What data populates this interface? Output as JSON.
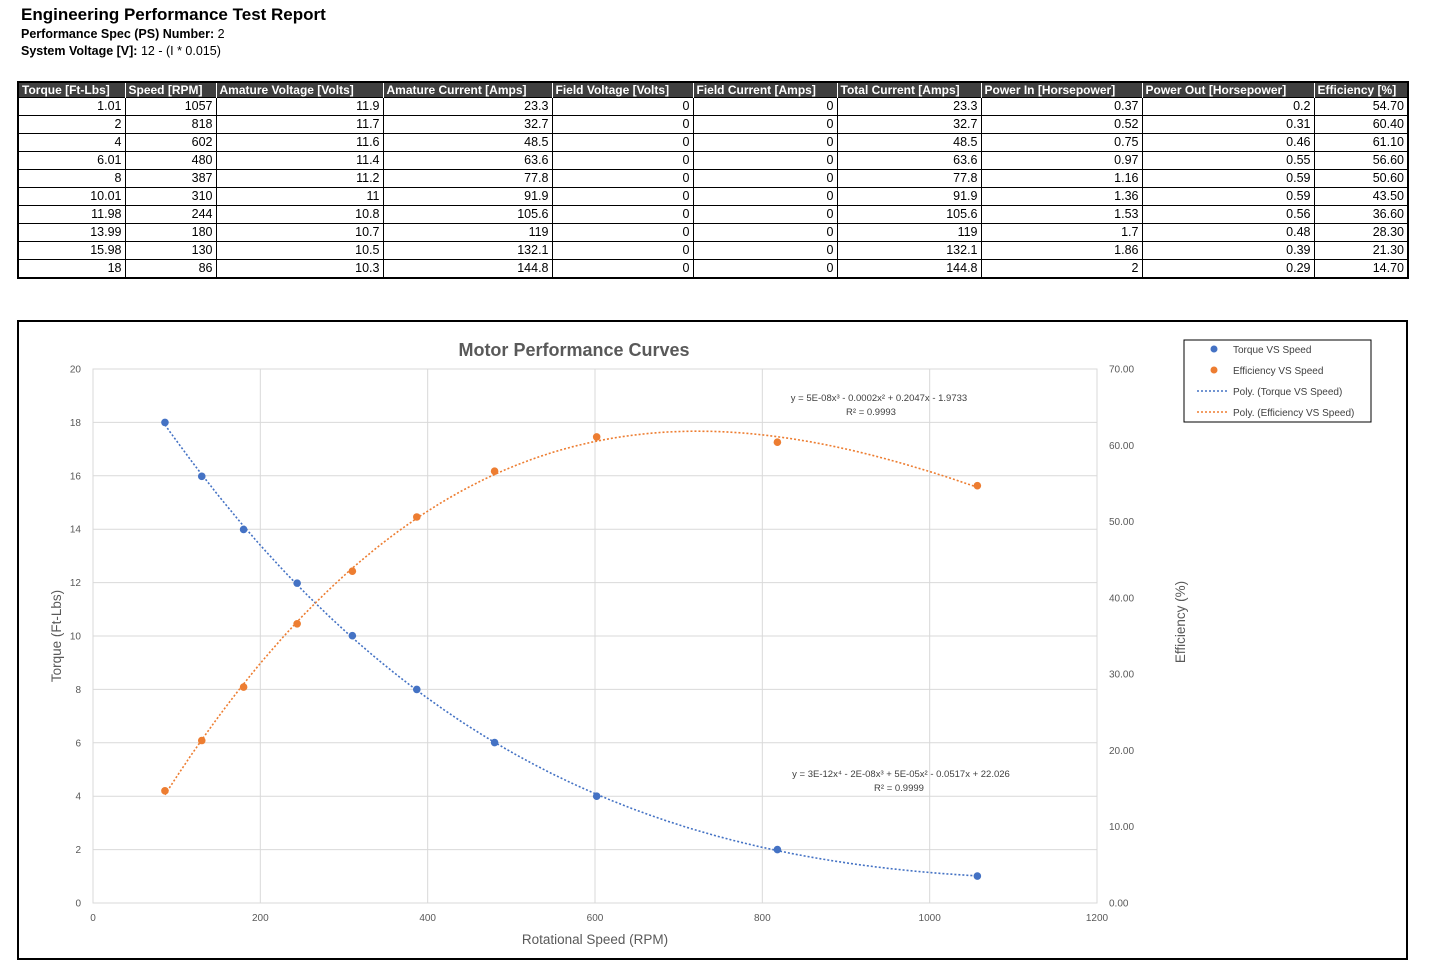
{
  "report": {
    "title": "Engineering Performance Test Report",
    "spec_label": "Performance Spec (PS) Number:",
    "spec_value": "2",
    "voltage_label": "System Voltage [V]:",
    "voltage_value": "12 - (I * 0.015)"
  },
  "table": {
    "columns": [
      "Torque [Ft-Lbs]",
      "Speed [RPM]",
      "Amature Voltage [Volts]",
      "Amature Current [Amps]",
      "Field Voltage [Volts]",
      "Field Current [Amps]",
      "Total Current [Amps]",
      "Power In [Horsepower]",
      "Power Out [Horsepower]",
      "Efficiency [%]"
    ],
    "rows": [
      [
        "1.01",
        "1057",
        "11.9",
        "23.3",
        "0",
        "0",
        "23.3",
        "0.37",
        "0.2",
        "54.70"
      ],
      [
        "2",
        "818",
        "11.7",
        "32.7",
        "0",
        "0",
        "32.7",
        "0.52",
        "0.31",
        "60.40"
      ],
      [
        "4",
        "602",
        "11.6",
        "48.5",
        "0",
        "0",
        "48.5",
        "0.75",
        "0.46",
        "61.10"
      ],
      [
        "6.01",
        "480",
        "11.4",
        "63.6",
        "0",
        "0",
        "63.6",
        "0.97",
        "0.55",
        "56.60"
      ],
      [
        "8",
        "387",
        "11.2",
        "77.8",
        "0",
        "0",
        "77.8",
        "1.16",
        "0.59",
        "50.60"
      ],
      [
        "10.01",
        "310",
        "11",
        "91.9",
        "0",
        "0",
        "91.9",
        "1.36",
        "0.59",
        "43.50"
      ],
      [
        "11.98",
        "244",
        "10.8",
        "105.6",
        "0",
        "0",
        "105.6",
        "1.53",
        "0.56",
        "36.60"
      ],
      [
        "13.99",
        "180",
        "10.7",
        "119",
        "0",
        "0",
        "119",
        "1.7",
        "0.48",
        "28.30"
      ],
      [
        "15.98",
        "130",
        "10.5",
        "132.1",
        "0",
        "0",
        "132.1",
        "1.86",
        "0.39",
        "21.30"
      ],
      [
        "18",
        "86",
        "10.3",
        "144.8",
        "0",
        "0",
        "144.8",
        "2",
        "0.29",
        "14.70"
      ]
    ]
  },
  "chart_data": {
    "type": "scatter",
    "title": "Motor Performance Curves",
    "xlabel": "Rotational Speed (RPM)",
    "ylabel": "Torque (Ft-Lbs)",
    "y2label": "Efficiency (%)",
    "xlim": [
      0,
      1200
    ],
    "ylim": [
      0,
      20
    ],
    "y2lim": [
      0,
      70
    ],
    "xticks": [
      "0",
      "200",
      "400",
      "600",
      "800",
      "1000",
      "1200"
    ],
    "yticks": [
      "0",
      "2",
      "4",
      "6",
      "8",
      "10",
      "12",
      "14",
      "16",
      "18",
      "20"
    ],
    "y2ticks": [
      "0.00",
      "10.00",
      "20.00",
      "30.00",
      "40.00",
      "50.00",
      "60.00",
      "70.00"
    ],
    "grid": true,
    "legend_position": "top-right",
    "series": [
      {
        "name": "Torque VS Speed",
        "axis": "left",
        "color": "#4472c4",
        "x": [
          1057,
          818,
          602,
          480,
          387,
          310,
          244,
          180,
          130,
          86
        ],
        "y": [
          1.01,
          2,
          4,
          6.01,
          8,
          10.01,
          11.98,
          13.99,
          15.98,
          18
        ]
      },
      {
        "name": "Efficiency VS Speed",
        "axis": "right",
        "color": "#ed7d31",
        "x": [
          1057,
          818,
          602,
          480,
          387,
          310,
          244,
          180,
          130,
          86
        ],
        "y": [
          54.7,
          60.4,
          61.1,
          56.6,
          50.6,
          43.5,
          36.6,
          28.3,
          21.3,
          14.7
        ]
      }
    ],
    "trendlines": [
      {
        "name": "Poly. (Torque VS Speed)",
        "color": "#4472c4",
        "axis": "left",
        "order": 4,
        "equation": "y = 3E-12x⁴ - 2E-08x³ + 5E-05x² - 0.0517x + 22.026",
        "r2": "R² = 0.9999"
      },
      {
        "name": "Poly. (Efficiency VS Speed)",
        "color": "#ed7d31",
        "axis": "right",
        "order": 3,
        "equation": "y = 5E-08x³ - 0.0002x² + 0.2047x - 1.9733",
        "r2": "R² = 0.9993"
      }
    ]
  }
}
